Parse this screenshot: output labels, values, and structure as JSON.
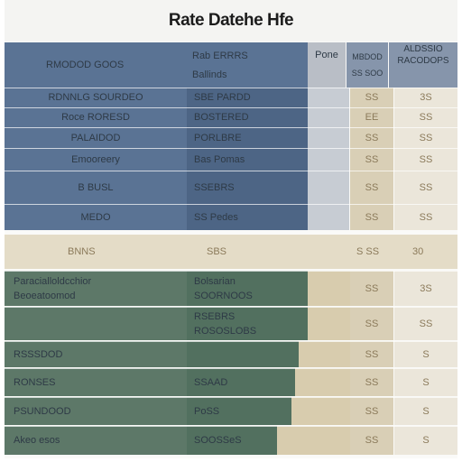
{
  "title": "Rate Datehe Hfe",
  "header": {
    "c1": "RMODOD GOOS",
    "c2a": "Rab ERRRS",
    "c2b": "Ballinds",
    "c3": "Pone",
    "c4a": "MBDOD",
    "c4b": "SS SOO",
    "c5a": "ALDSSIO",
    "c5b": "RACODOPS"
  },
  "blue_rows": [
    {
      "c1": "RDNNLG SOURDEO",
      "c2": "SBE PARDD",
      "c4": "SS",
      "c5": "3S"
    },
    {
      "c1": "Roce RORESD",
      "c2": "BOSTERED",
      "c4": "EE",
      "c5": "SS"
    },
    {
      "c1": "PALAIDOD",
      "c2": "PORLBRE",
      "c4": "SS",
      "c5": "SS"
    },
    {
      "c1": "Emooreery",
      "c2": "Bas Pomas",
      "c4": "SS",
      "c5": "SS"
    },
    {
      "c1": "B BUSL",
      "c2": "SSEBRS",
      "c4": "SS",
      "c5": "SS"
    },
    {
      "c1": "MEDO",
      "c2": "SS Pedes",
      "c4": "SS",
      "c5": "SS"
    }
  ],
  "mid_row": {
    "c1": "BNNS",
    "c2": "SBS",
    "c4": "S SS",
    "c5": "30"
  },
  "green_rows": [
    {
      "c1": "Paracialloldcchior",
      "c1b": "Beoeatoomod",
      "c2": "Bolsarian",
      "c2b": "SOORNOOS",
      "c4": "SS",
      "c5": "3S"
    },
    {
      "c1": "",
      "c2": "RSEBRS",
      "c2b": "ROSOSLOBS",
      "c4": "SS",
      "c5": "SS"
    },
    {
      "c1": "RSSSDOD",
      "c2": "",
      "c4": "SS",
      "c5": "S"
    },
    {
      "c1": "RONSES",
      "c2": "SSAAD",
      "c4": "SS",
      "c5": "S"
    },
    {
      "c1": "PSUNDOOD",
      "c2": "PoSS",
      "c4": "SS",
      "c5": "S"
    },
    {
      "c1": "Akeo esos",
      "c2": "SOOSSeS",
      "c4": "SS",
      "c5": "S"
    }
  ]
}
